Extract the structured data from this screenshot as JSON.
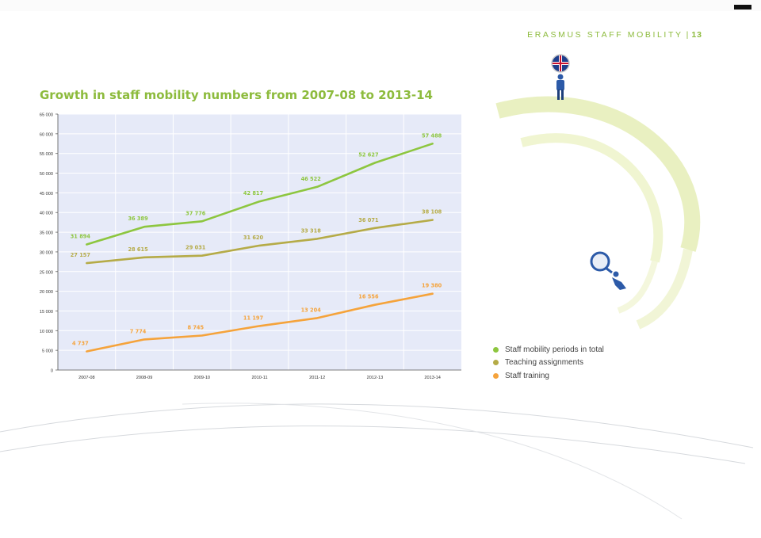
{
  "header": {
    "text": "ERASMUS STAFF MOBILITY",
    "page": "13"
  },
  "colors": {
    "total": "#8dc63f",
    "teaching": "#b5ab47",
    "training": "#f5a33b",
    "plot_bg": "#e6eaf8",
    "title": "#8dbb3d"
  },
  "icons": [
    "uk-flag-person-icon",
    "magnifier-person-icon"
  ],
  "chart_data": {
    "type": "line",
    "title": "Growth in staff mobility numbers from 2007-08 to 2013-14",
    "xlabel": "",
    "ylabel": "",
    "categories": [
      "2007-08",
      "2008-09",
      "2009-10",
      "2010-11",
      "2011-12",
      "2012-13",
      "2013-14"
    ],
    "ylim": [
      0,
      65000
    ],
    "yticks": [
      0,
      5000,
      10000,
      15000,
      20000,
      25000,
      30000,
      35000,
      40000,
      45000,
      50000,
      55000,
      60000,
      65000
    ],
    "ytick_labels": [
      "0",
      "5 000",
      "10 000",
      "15 000",
      "20 000",
      "25 000",
      "30 000",
      "35 000",
      "40 000",
      "45 000",
      "50 000",
      "55 000",
      "60 000",
      "65 000"
    ],
    "grid": true,
    "legend_position": "right",
    "series": [
      {
        "key": "total",
        "name": "Staff mobility periods in total",
        "values": [
          31894,
          36389,
          37776,
          42817,
          46522,
          52627,
          57488
        ],
        "labels": [
          "31 894",
          "36 389",
          "37 776",
          "42 817",
          "46 522",
          "52 627",
          "57 488"
        ]
      },
      {
        "key": "teaching",
        "name": "Teaching assignments",
        "values": [
          27157,
          28615,
          29031,
          31620,
          33318,
          36071,
          38108
        ],
        "labels": [
          "27 157",
          "28 615",
          "29 031",
          "31 620",
          "33 318",
          "36 071",
          "38 108"
        ]
      },
      {
        "key": "training",
        "name": "Staff training",
        "values": [
          4737,
          7774,
          8745,
          11197,
          13204,
          16556,
          19380
        ],
        "labels": [
          "4 737",
          "7 774",
          "8 745",
          "11 197",
          "13 204",
          "16 556",
          "19 380"
        ]
      }
    ]
  }
}
